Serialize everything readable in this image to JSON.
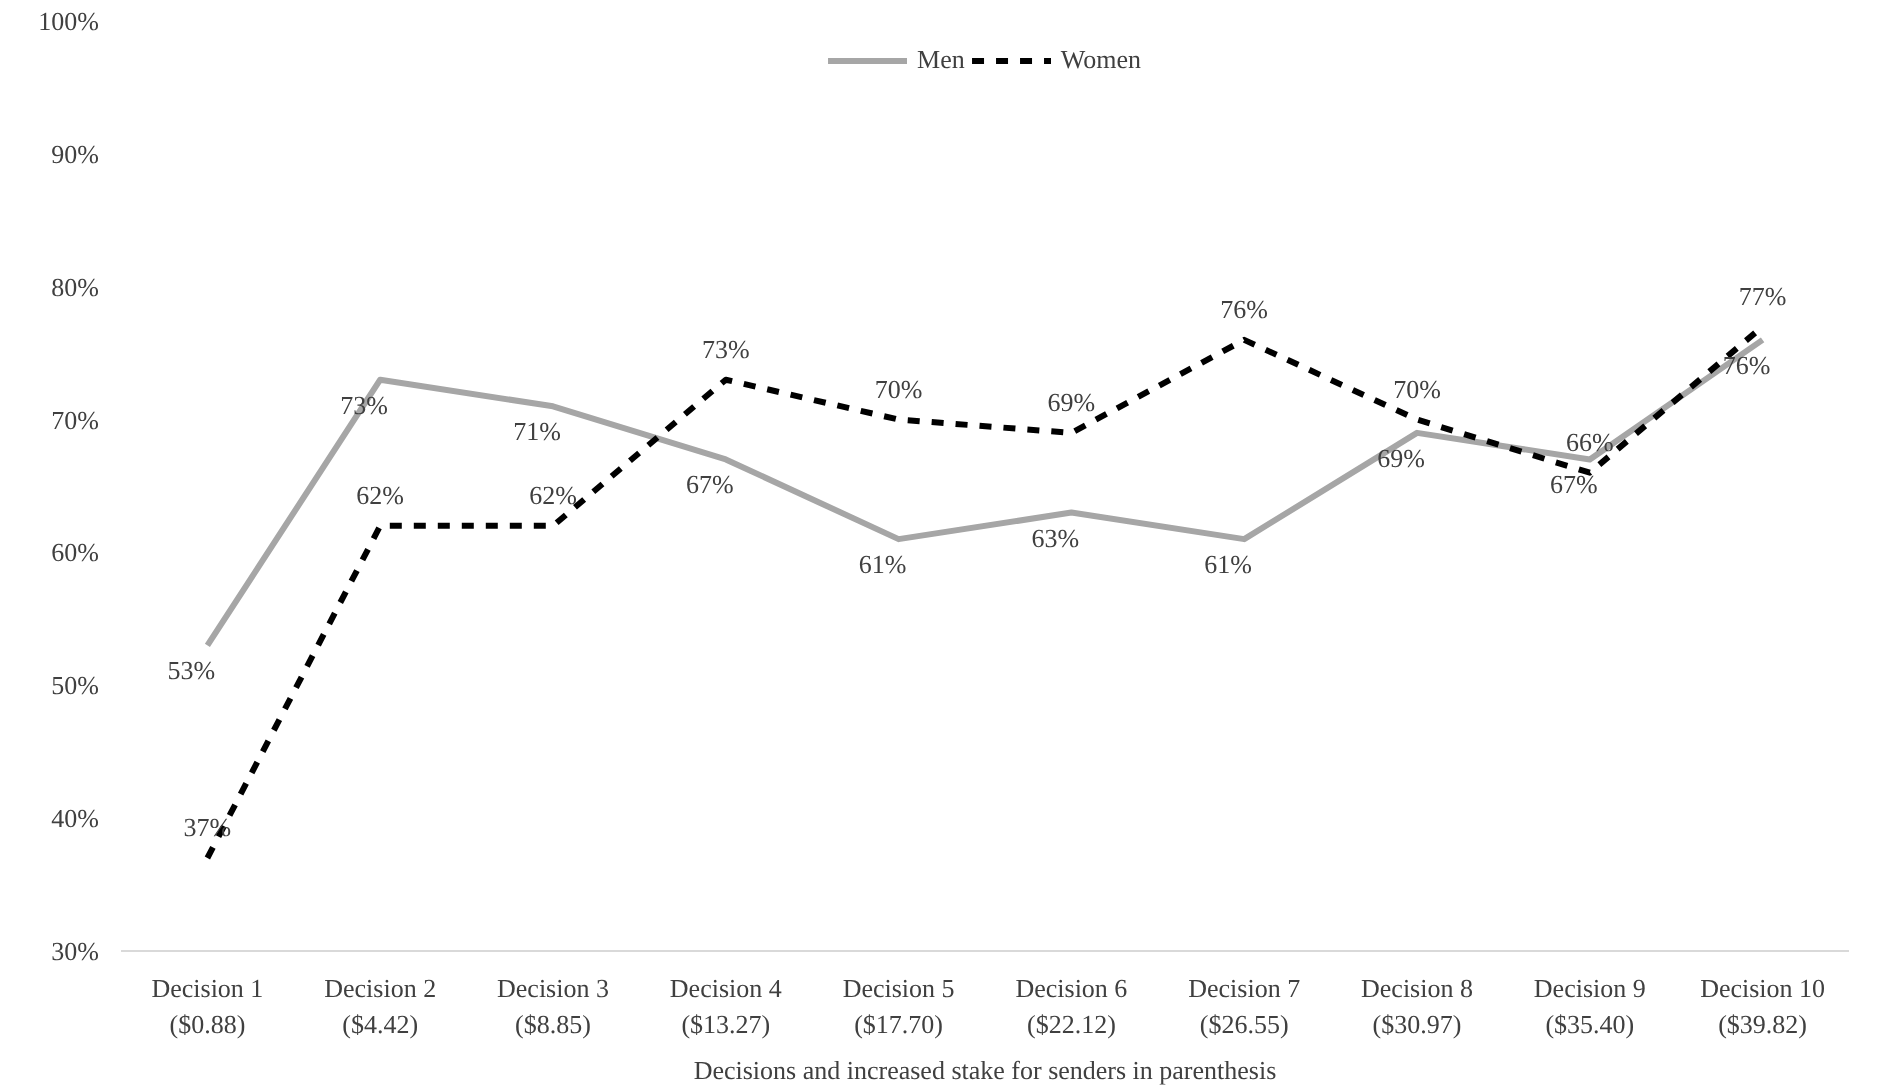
{
  "chart_data": {
    "type": "line",
    "xlabel": "Decisions and increased stake for senders in parenthesis",
    "categories": [
      "Decision 1\n($0.88)",
      "Decision 2\n($4.42)",
      "Decision 3\n($8.85)",
      "Decision 4\n($13.27)",
      "Decision 5\n($17.70)",
      "Decision 6\n($22.12)",
      "Decision 7\n($26.55)",
      "Decision 8\n($30.97)",
      "Decision 9\n($35.40)",
      "Decision 10\n($39.82)"
    ],
    "series": [
      {
        "name": "Men",
        "color": "#a6a6a6",
        "line_style": "solid",
        "values": [
          53,
          73,
          71,
          67,
          61,
          63,
          61,
          69,
          67,
          76
        ],
        "value_labels": [
          "53%",
          "73%",
          "71%",
          "67%",
          "61%",
          "63%",
          "61%",
          "69%",
          "67%",
          "76%"
        ]
      },
      {
        "name": "Women",
        "color": "#000000",
        "line_style": "dashed",
        "values": [
          37,
          62,
          62,
          73,
          70,
          69,
          76,
          70,
          66,
          77
        ],
        "value_labels": [
          "37%",
          "62%",
          "62%",
          "73%",
          "70%",
          "69%",
          "76%",
          "70%",
          "66%",
          "77%"
        ]
      }
    ],
    "ylim": [
      30,
      100
    ],
    "yticks": [
      {
        "value": 30,
        "label": "30%"
      },
      {
        "value": 40,
        "label": "40%"
      },
      {
        "value": 50,
        "label": "50%"
      },
      {
        "value": 60,
        "label": "60%"
      },
      {
        "value": 70,
        "label": "70%"
      },
      {
        "value": 80,
        "label": "80%"
      },
      {
        "value": 90,
        "label": "90%"
      },
      {
        "value": 100,
        "label": "100%"
      }
    ],
    "grid": false,
    "legend": "top",
    "marker": "none"
  }
}
